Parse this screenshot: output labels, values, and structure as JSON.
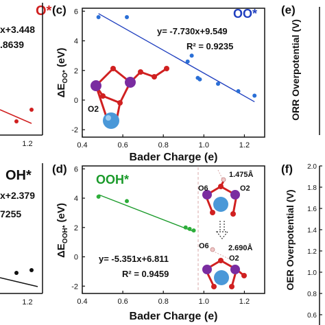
{
  "chart_data": [
    {
      "type": "scatter",
      "panel": "(c)",
      "label": "OO*",
      "label_color": "#1f3fbf",
      "point_color": "#2a6fd6",
      "line_color": "#1f3fbf",
      "xlabel": "Bader Charge (e)",
      "ylabel": "ΔE_OO* (eV)",
      "xlim": [
        0.4,
        1.3
      ],
      "ylim": [
        -2.5,
        6.2
      ],
      "xticks": [
        "0.4",
        "0.6",
        "0.8",
        "1.0",
        "1.2"
      ],
      "yticks": [
        "-2",
        "0",
        "2",
        "4",
        "6"
      ],
      "x": [
        0.48,
        0.62,
        0.92,
        0.94,
        0.97,
        0.98,
        1.07,
        1.17,
        1.25
      ],
      "y": [
        5.6,
        5.6,
        2.6,
        3.0,
        1.5,
        1.4,
        1.1,
        0.6,
        0.3
      ],
      "fit": {
        "slope": -7.73,
        "intercept": 9.549
      },
      "equation": "y= -7.730x+9.549",
      "r2": "R² = 0.9235",
      "atom_label": "O2"
    },
    {
      "type": "scatter",
      "panel": "(d)",
      "label": "OOH*",
      "label_color": "#1a9a2a",
      "point_color": "#2dae3a",
      "line_color": "#1a9a2a",
      "xlabel": "Bader Charge (e)",
      "ylabel": "ΔE_OOH* (eV)",
      "xlim": [
        0.4,
        1.3
      ],
      "ylim": [
        -2.5,
        6.2
      ],
      "xticks": [
        "0.4",
        "0.6",
        "0.8",
        "1.0",
        "1.2"
      ],
      "yticks": [
        "-2",
        "0",
        "2",
        "4",
        "6"
      ],
      "x": [
        0.48,
        0.62,
        0.91,
        0.93,
        0.95
      ],
      "y": [
        4.1,
        3.8,
        2.0,
        1.9,
        1.8
      ],
      "fit": {
        "slope": -5.351,
        "intercept": 6.811
      },
      "equation": "y= -5.351x+6.811",
      "r2": "R² = 0.9459",
      "atom_labels": [
        "O6",
        "O2",
        "O6",
        "O2"
      ],
      "distances": [
        "1.475Å",
        "2.690Å"
      ]
    }
  ],
  "partial_panels": {
    "left_top": {
      "label": "O*",
      "label_color": "#d02020",
      "equation": "x+3.448",
      "r2": ".8639",
      "tick": "1.2"
    },
    "left_bottom": {
      "label": "OH*",
      "equation": "x+2.379",
      "r2": "7255",
      "tick": "1.2"
    },
    "right_top": {
      "panel": "(e)",
      "ylabel": "ORR Overpotential (V)"
    },
    "right_bottom": {
      "panel": "(f)",
      "ylabel": "OER Overpotential (V)",
      "yticks": [
        "2.0",
        "1.8",
        "1.6",
        "1.4",
        "1.2",
        "1.0",
        "0.8",
        "0.6"
      ]
    }
  }
}
